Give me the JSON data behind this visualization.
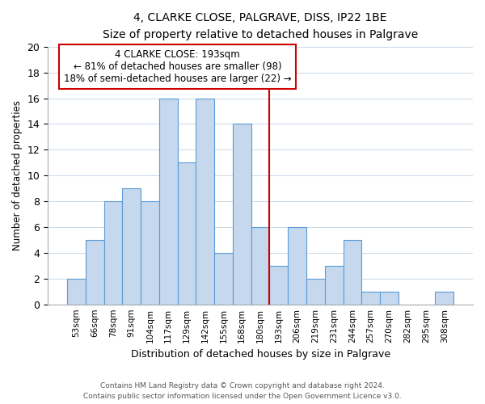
{
  "title": "4, CLARKE CLOSE, PALGRAVE, DISS, IP22 1BE",
  "subtitle": "Size of property relative to detached houses in Palgrave",
  "xlabel": "Distribution of detached houses by size in Palgrave",
  "ylabel": "Number of detached properties",
  "bar_labels": [
    "53sqm",
    "66sqm",
    "78sqm",
    "91sqm",
    "104sqm",
    "117sqm",
    "129sqm",
    "142sqm",
    "155sqm",
    "168sqm",
    "180sqm",
    "193sqm",
    "206sqm",
    "219sqm",
    "231sqm",
    "244sqm",
    "257sqm",
    "270sqm",
    "282sqm",
    "295sqm",
    "308sqm"
  ],
  "bar_values": [
    2,
    5,
    8,
    9,
    8,
    16,
    11,
    16,
    4,
    14,
    6,
    3,
    6,
    2,
    3,
    5,
    1,
    1,
    0,
    0,
    1
  ],
  "ylim": [
    0,
    20
  ],
  "yticks": [
    0,
    2,
    4,
    6,
    8,
    10,
    12,
    14,
    16,
    18,
    20
  ],
  "bar_color": "#c5d8ed",
  "bar_edge_color": "#5b9bd5",
  "vline_x_index": 11,
  "vline_color": "#cc0000",
  "annotation_title": "4 CLARKE CLOSE: 193sqm",
  "annotation_line1": "← 81% of detached houses are smaller (98)",
  "annotation_line2": "18% of semi-detached houses are larger (22) →",
  "annotation_box_color": "#ffffff",
  "annotation_box_edge_color": "#cc0000",
  "footer_line1": "Contains HM Land Registry data © Crown copyright and database right 2024.",
  "footer_line2": "Contains public sector information licensed under the Open Government Licence v3.0.",
  "background_color": "#ffffff",
  "grid_color": "#c8d8e8"
}
